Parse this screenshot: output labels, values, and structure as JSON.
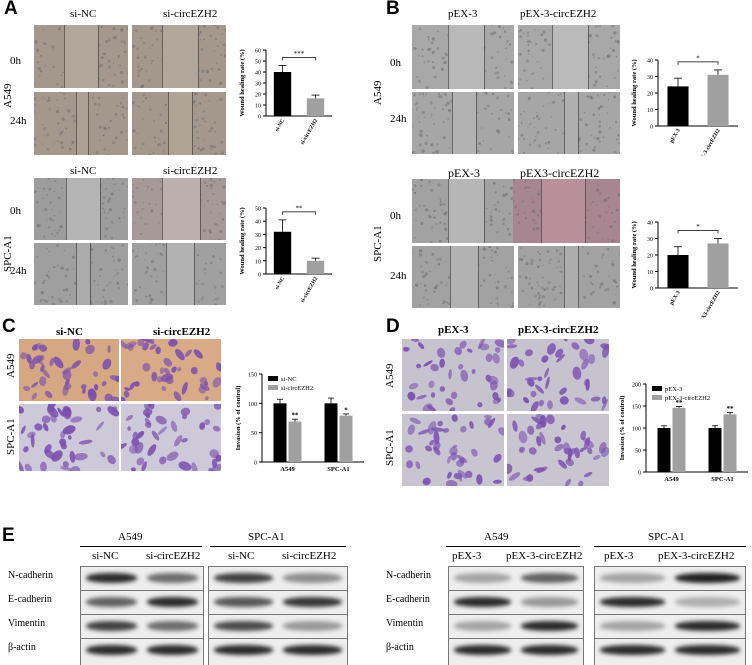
{
  "panels": {
    "A": {
      "label": "A",
      "groups": [
        "si-NC",
        "si-circEZH2"
      ],
      "timepoints": [
        "0h",
        "24h"
      ],
      "cell_lines": [
        "A549",
        "SPC-A1"
      ]
    },
    "B": {
      "label": "B",
      "groups_top": [
        "pEX-3",
        "pEX-3-circEZH2"
      ],
      "groups_bottom": [
        "pEX-3",
        "pEX3-circEZH2"
      ],
      "timepoints": [
        "0h",
        "24h"
      ],
      "cell_lines": [
        "A549",
        "SPC-A1"
      ]
    },
    "C": {
      "label": "C",
      "groups": [
        "si-NC",
        "si-circEZH2"
      ],
      "cell_lines": [
        "A549",
        "SPC-A1"
      ]
    },
    "D": {
      "label": "D",
      "groups": [
        "pEX-3",
        "pEX-3-circEZH2"
      ],
      "cell_lines": [
        "A549",
        "SPC-A1"
      ]
    },
    "E": {
      "label": "E",
      "left": {
        "lines": [
          "A549",
          "SPC-A1"
        ],
        "groups": [
          "si-NC",
          "si-circEZH2",
          "si-NC",
          "si-circEZH2"
        ],
        "proteins": [
          "N-cadherin",
          "E-cadherin",
          "Vimentin",
          "β-actin"
        ]
      },
      "right": {
        "lines": [
          "A549",
          "SPC-A1"
        ],
        "groups": [
          "pEX-3",
          "pEX-3-circEZH2",
          "pEX-3",
          "pEX-3-circEZH2"
        ],
        "proteins": [
          "N-cadherin",
          "E-cadherin",
          "Vimentin",
          "β-actin"
        ]
      }
    }
  },
  "chart_data": [
    {
      "id": "A-A549",
      "type": "bar",
      "categories": [
        "si-NC",
        "si-circEZH2"
      ],
      "values": [
        40,
        16
      ],
      "errors": [
        6,
        3
      ],
      "ylabel": "Wound healing rate (%)",
      "ylim": [
        0,
        60
      ],
      "yticks": [
        0,
        10,
        20,
        30,
        40,
        50,
        60
      ],
      "significance": "***",
      "colors": [
        "#000000",
        "#a0a0a0"
      ]
    },
    {
      "id": "A-SPCA1",
      "type": "bar",
      "categories": [
        "si-NC",
        "si-circEZH2"
      ],
      "values": [
        32,
        10
      ],
      "errors": [
        9,
        2
      ],
      "ylabel": "Wound healing rate (%)",
      "ylim": [
        0,
        50
      ],
      "yticks": [
        0,
        10,
        20,
        30,
        40,
        50
      ],
      "significance": "**",
      "colors": [
        "#000000",
        "#a0a0a0"
      ]
    },
    {
      "id": "B-A549",
      "type": "bar",
      "categories": [
        "pEX-3",
        "pEX-3-circEZH2"
      ],
      "values": [
        24,
        31
      ],
      "errors": [
        5,
        3
      ],
      "ylabel": "Wound healing rate (%)",
      "ylim": [
        0,
        40
      ],
      "yticks": [
        0,
        10,
        20,
        30,
        40
      ],
      "significance": "*",
      "colors": [
        "#000000",
        "#a0a0a0"
      ]
    },
    {
      "id": "B-SPCA1",
      "type": "bar",
      "categories": [
        "pEX-3",
        "pEX3-circEZH2"
      ],
      "values": [
        20,
        27
      ],
      "errors": [
        5,
        3
      ],
      "ylabel": "Wound healing rate (%)",
      "ylim": [
        0,
        40
      ],
      "yticks": [
        0,
        10,
        20,
        30,
        40
      ],
      "significance": "*",
      "colors": [
        "#000000",
        "#a0a0a0"
      ]
    },
    {
      "id": "C",
      "type": "bar",
      "categories": [
        "A549",
        "SPC-A1"
      ],
      "series": [
        {
          "name": "si-NC",
          "values": [
            100,
            100
          ],
          "errors": [
            7,
            9
          ],
          "color": "#000000"
        },
        {
          "name": "si-circEZH2",
          "values": [
            69,
            79
          ],
          "errors": [
            4,
            3
          ],
          "color": "#a0a0a0"
        }
      ],
      "significance": [
        "**",
        "*"
      ],
      "ylabel": "Invasion (% of control)",
      "ylim": [
        0,
        150
      ],
      "yticks": [
        0,
        50,
        100,
        150
      ],
      "legend": "top-left"
    },
    {
      "id": "D",
      "type": "bar",
      "categories": [
        "A549",
        "SPC-A1"
      ],
      "series": [
        {
          "name": "pEX-3",
          "values": [
            100,
            100
          ],
          "errors": [
            5,
            5
          ],
          "color": "#000000"
        },
        {
          "name": "pEX-3-circEZH2",
          "values": [
            146,
            131
          ],
          "errors": [
            3,
            4
          ],
          "color": "#a0a0a0"
        }
      ],
      "significance": [
        "**",
        "**"
      ],
      "ylabel": "Invasion (% of control)",
      "ylim": [
        0,
        200
      ],
      "yticks": [
        0,
        50,
        100,
        150,
        200
      ],
      "legend": "top-left"
    }
  ],
  "blot_intensity": {
    "left": {
      "N-cadherin": [
        0.85,
        0.55,
        0.75,
        0.4
      ],
      "E-cadherin": [
        0.6,
        0.85,
        0.65,
        0.8
      ],
      "Vimentin": [
        0.75,
        0.55,
        0.7,
        0.35
      ],
      "β-actin": [
        0.85,
        0.85,
        0.85,
        0.85
      ]
    },
    "right": {
      "N-cadherin": [
        0.3,
        0.6,
        0.3,
        0.9
      ],
      "E-cadherin": [
        0.85,
        0.35,
        0.85,
        0.25
      ],
      "Vimentin": [
        0.3,
        0.85,
        0.3,
        0.85
      ],
      "β-actin": [
        0.85,
        0.85,
        0.85,
        0.85
      ]
    }
  }
}
